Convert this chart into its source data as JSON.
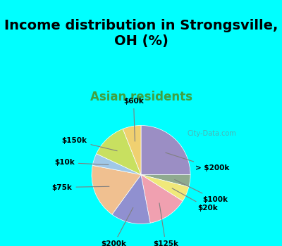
{
  "title": "Income distribution in Strongsville,\nOH (%)",
  "subtitle": "Asian residents",
  "background_color": "#00FFFF",
  "chart_bg_color": "#e8f0e8",
  "labels": [
    "> $200k",
    "$100k",
    "$20k",
    "$125k",
    "$200k",
    "$75k",
    "$10k",
    "$150k",
    "$60k"
  ],
  "values": [
    25,
    4,
    5,
    13,
    13,
    18,
    4,
    12,
    6
  ],
  "colors": [
    "#9b8ec4",
    "#8faa8f",
    "#f0e87a",
    "#f0a0b0",
    "#9090d0",
    "#f0c090",
    "#a0c8e8",
    "#c8e060",
    "#f0d070"
  ],
  "title_fontsize": 14,
  "subtitle_fontsize": 12,
  "subtitle_color": "#40a040",
  "watermark": "City-Data.com"
}
